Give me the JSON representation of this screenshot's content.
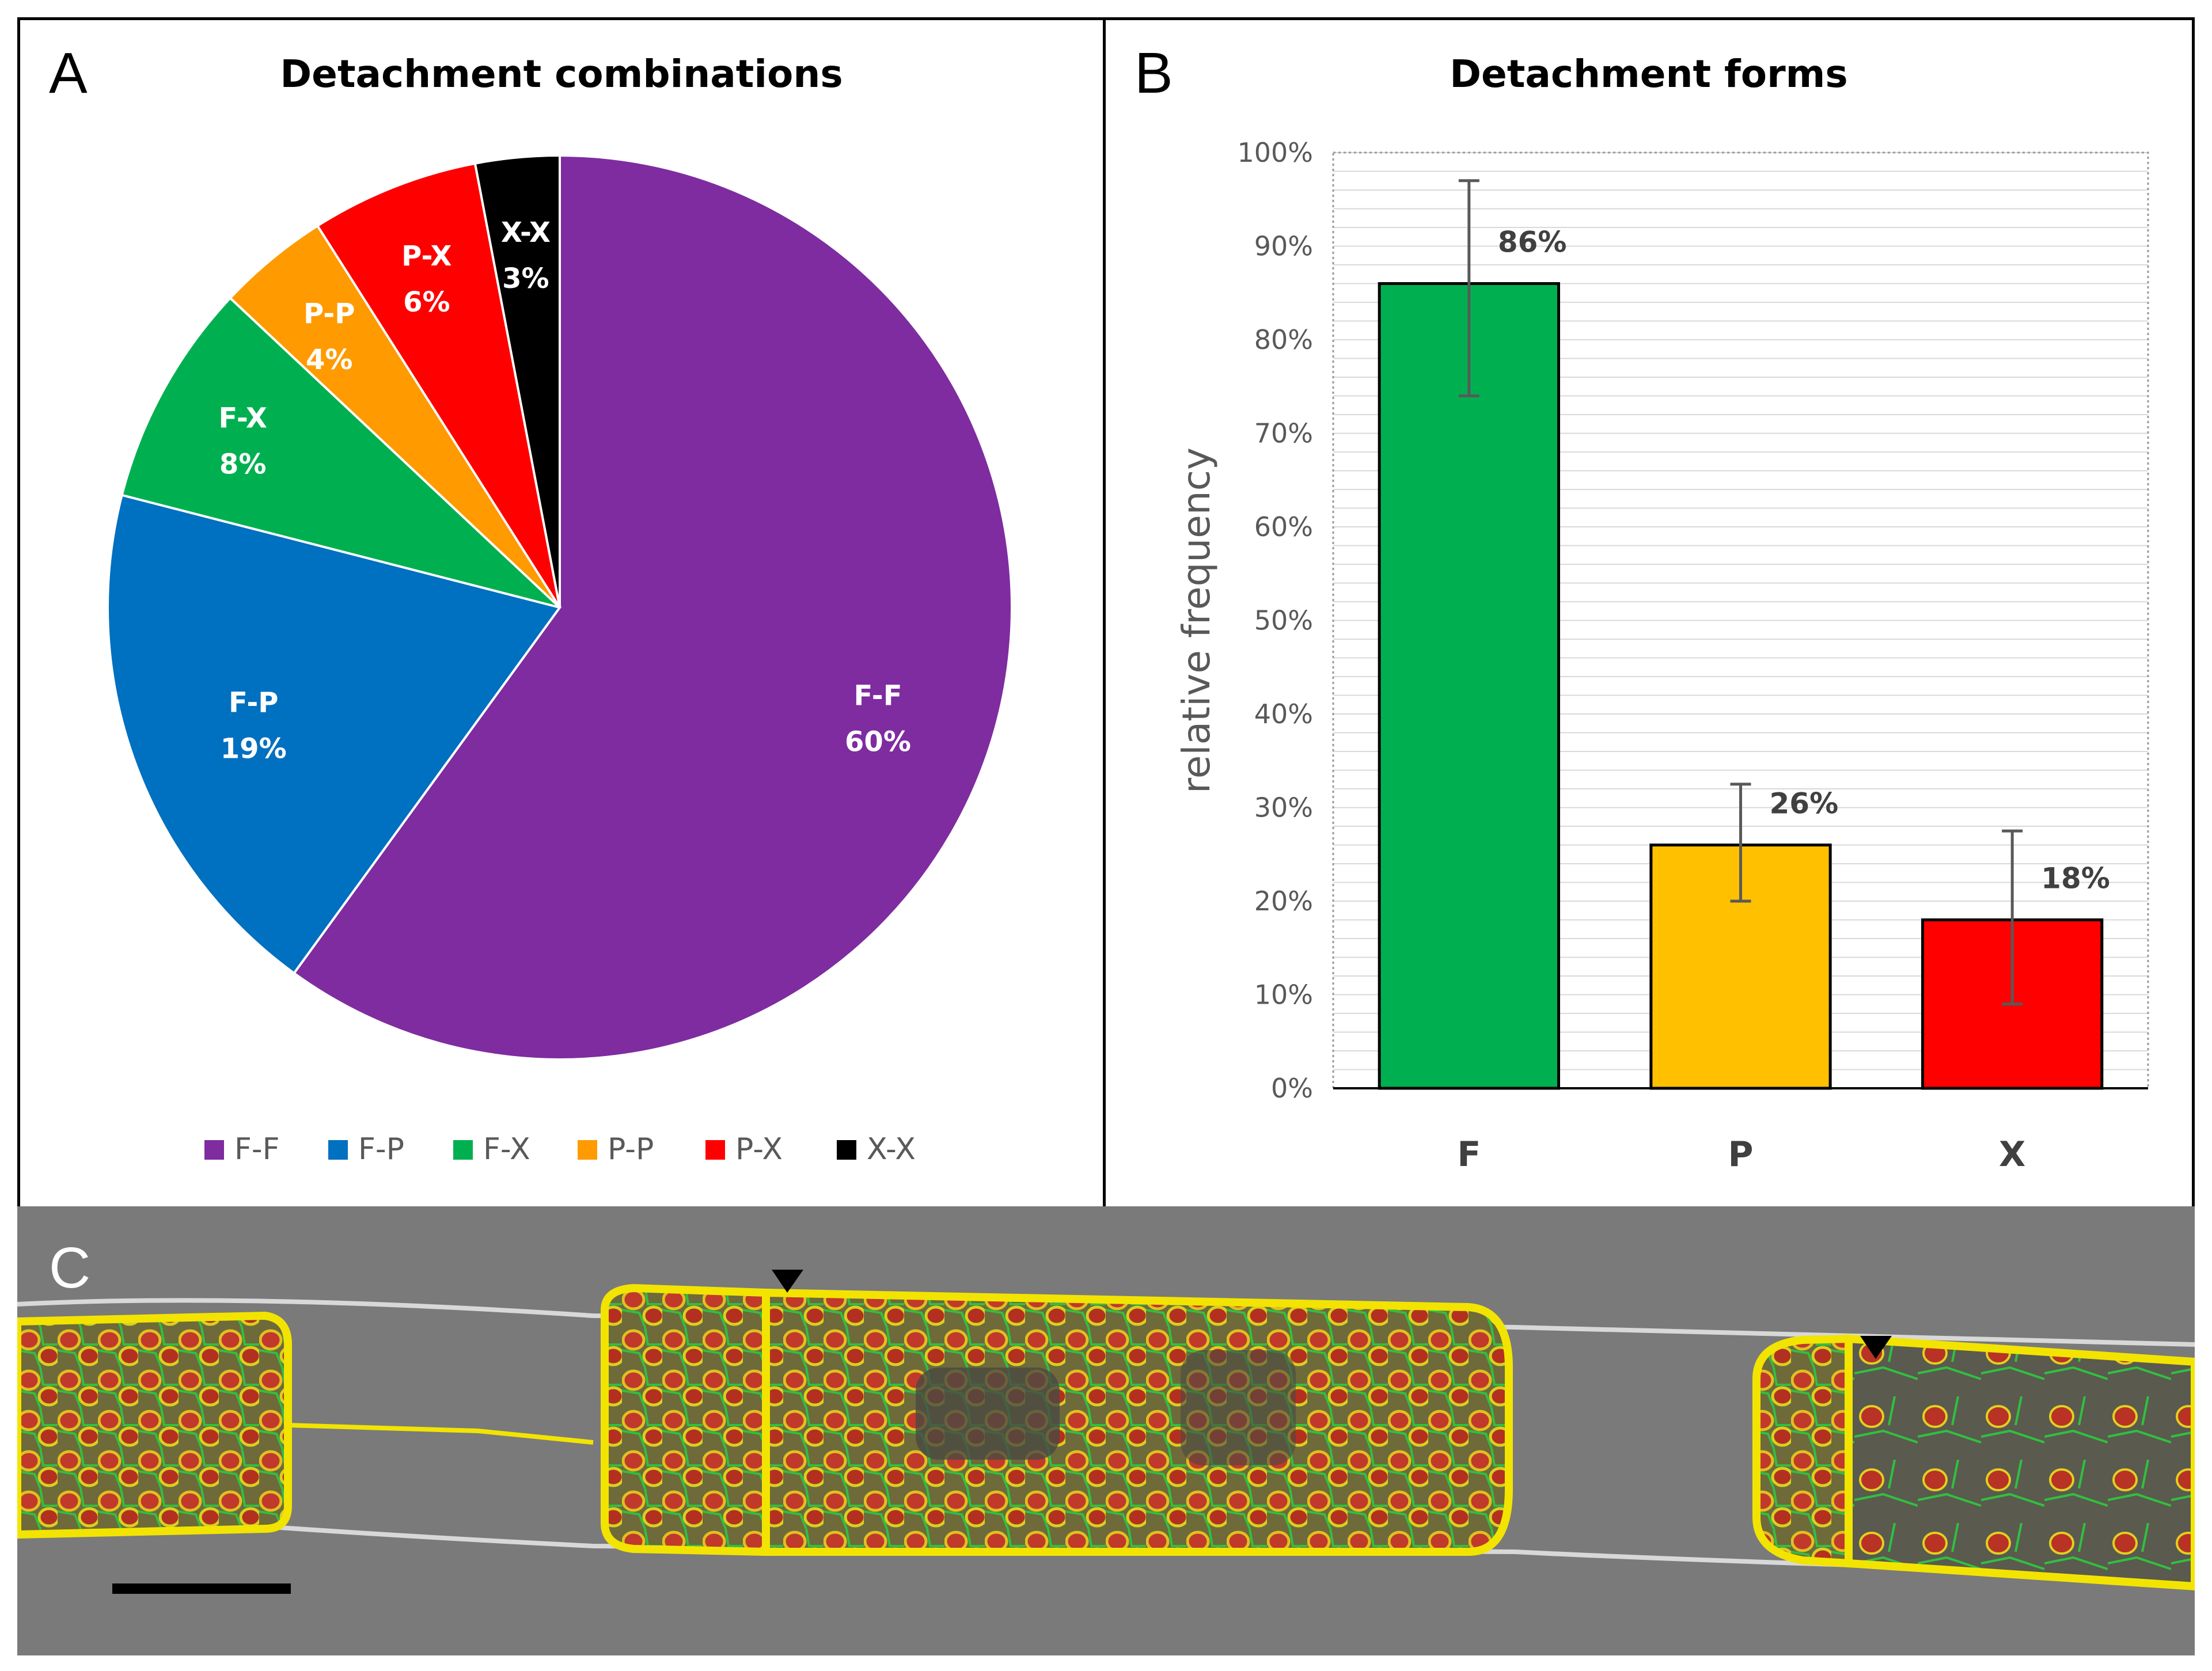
{
  "chart_data": [
    {
      "panel": "A",
      "type": "pie",
      "title": "Detachment combinations",
      "categories": [
        "F-F",
        "F-P",
        "F-X",
        "P-P",
        "P-X",
        "X-X"
      ],
      "values": [
        60,
        19,
        8,
        4,
        6,
        3
      ],
      "value_labels": [
        "60%",
        "19%",
        "8%",
        "4%",
        "6%",
        "3%"
      ],
      "colors": [
        "#7e2ca0",
        "#0070c0",
        "#00b050",
        "#ff9a00",
        "#ff0000",
        "#000000"
      ],
      "legend": "bottom"
    },
    {
      "panel": "B",
      "type": "bar",
      "title": "Detachment forms",
      "categories": [
        "F",
        "P",
        "X"
      ],
      "values": [
        86,
        26,
        18
      ],
      "value_labels": [
        "86%",
        "26%",
        "18%"
      ],
      "error_low": [
        74,
        20,
        9
      ],
      "error_high": [
        97,
        32.5,
        27.5
      ],
      "colors": [
        "#00b050",
        "#ffc000",
        "#ff0000"
      ],
      "ylabel": "relative frequency",
      "xlabel": "",
      "ylim": [
        0,
        100
      ],
      "yticks": [
        0,
        10,
        20,
        30,
        40,
        50,
        60,
        70,
        80,
        90,
        100
      ],
      "ytick_labels": [
        "0%",
        "10%",
        "20%",
        "30%",
        "40%",
        "50%",
        "60%",
        "70%",
        "80%",
        "90%",
        "100%"
      ],
      "grid": true
    }
  ],
  "panels": {
    "a_letter": "A",
    "b_letter": "B",
    "c_letter": "C",
    "c_description": "micrograph"
  }
}
